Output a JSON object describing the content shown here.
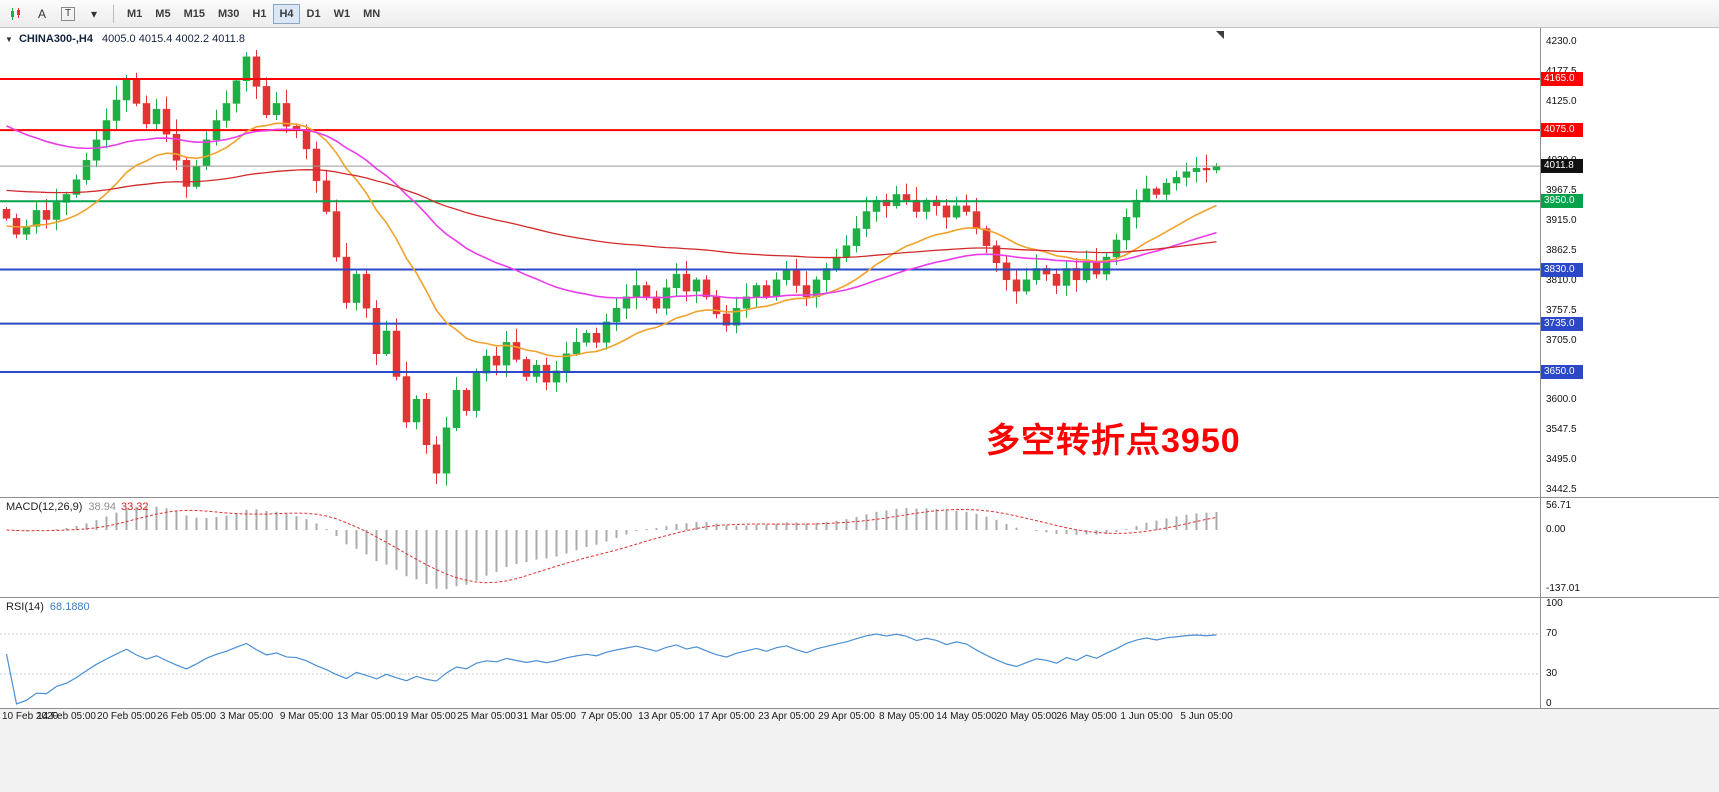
{
  "toolbar": {
    "tools": [
      {
        "name": "chart-type",
        "label": ""
      },
      {
        "name": "insert-text",
        "label": "A"
      },
      {
        "name": "text-label",
        "label": "T"
      },
      {
        "name": "drawing-tools",
        "label": "▾"
      }
    ],
    "timeframes": [
      "M1",
      "M5",
      "M15",
      "M30",
      "H1",
      "H4",
      "D1",
      "W1",
      "MN"
    ],
    "active_timeframe": "H4"
  },
  "header": {
    "collapse_icon": "▼",
    "symbol": "CHINA300-,H4",
    "ohlc": "4005.0 4015.4 4002.2 4011.8"
  },
  "chart_data": {
    "type": "candlestick",
    "symbol": "CHINA300-",
    "timeframe": "H4",
    "current_price": "4011.8",
    "current_price_value": 4011.8,
    "annotation": "多空转折点3950",
    "annotation_color": "#fe0000",
    "candles": {
      "first_open": 3936,
      "closes": [
        3920,
        3892,
        3906,
        3934,
        3918,
        3948,
        3962,
        3988,
        4022,
        4058,
        4092,
        4128,
        4166,
        4122,
        4086,
        4112,
        4068,
        4022,
        3976,
        4012,
        4058,
        4092,
        4122,
        4162,
        4204,
        4152,
        4102,
        4122,
        4082,
        4076,
        4042,
        3986,
        3932,
        3852,
        3772,
        3822,
        3762,
        3682,
        3722,
        3642,
        3562,
        3602,
        3522,
        3472,
        3552,
        3618,
        3582,
        3648,
        3678,
        3662,
        3702,
        3672,
        3642,
        3662,
        3632,
        3652,
        3682,
        3702,
        3718,
        3702,
        3738,
        3762,
        3782,
        3802,
        3782,
        3762,
        3798,
        3822,
        3792,
        3812,
        3782,
        3752,
        3732,
        3762,
        3782,
        3802,
        3782,
        3812,
        3828,
        3802,
        3782,
        3812,
        3832,
        3852,
        3872,
        3902,
        3932,
        3952,
        3942,
        3962,
        3952,
        3932,
        3952,
        3942,
        3922,
        3942,
        3932,
        3902,
        3872,
        3842,
        3812,
        3792,
        3812,
        3832,
        3822,
        3802,
        3832,
        3812,
        3842,
        3822,
        3852,
        3882,
        3922,
        3952,
        3972,
        3962,
        3982,
        3992,
        4002,
        4008,
        4005,
        4011.8
      ]
    },
    "candle_colors": {
      "up": "#1fae45",
      "down": "#e23434"
    },
    "levels": [
      {
        "price": 4165.0,
        "label": "4165.0",
        "color": "#fe0000"
      },
      {
        "price": 4075.0,
        "label": "4075.0",
        "color": "#fe0000"
      },
      {
        "price": 3950.0,
        "label": "3950.0",
        "color": "#00a24a"
      },
      {
        "price": 3830.0,
        "label": "3830.0",
        "color": "#2b48c8"
      },
      {
        "price": 3735.0,
        "label": "3735.0",
        "color": "#2b48c8"
      },
      {
        "price": 3650.0,
        "label": "3650.0",
        "color": "#2b48c8"
      }
    ],
    "current_price_badge_color": "#111111",
    "ma_colors": {
      "fast": "#f0a22b",
      "mid": "#ea3cea",
      "slow": "#d22a2a"
    },
    "y_axis": {
      "max": 4230.0,
      "min": 3442.5,
      "step": 52.5
    },
    "x_labels": [
      "10 Feb 2020",
      "14 Feb 05:00",
      "20 Feb 05:00",
      "26 Feb 05:00",
      "3 Mar 05:00",
      "9 Mar 05:00",
      "13 Mar 05:00",
      "19 Mar 05:00",
      "25 Mar 05:00",
      "31 Mar 05:00",
      "7 Apr 05:00",
      "13 Apr 05:00",
      "17 Apr 05:00",
      "23 Apr 05:00",
      "29 Apr 05:00",
      "8 May 05:00",
      "14 May 05:00",
      "20 May 05:00",
      "26 May 05:00",
      "1 Jun 05:00",
      "5 Jun 05:00"
    ],
    "indicators": {
      "macd": {
        "label": "MACD(12,26,9)",
        "main_value": "38.94",
        "signal_value": "33.32",
        "axis": [
          "56.71",
          "0.00",
          "-137.01"
        ]
      },
      "rsi": {
        "label": "RSI(14)",
        "value": "68.1880",
        "axis": [
          "100",
          "70",
          "30",
          "0"
        ],
        "levels": [
          70,
          30
        ]
      }
    }
  }
}
